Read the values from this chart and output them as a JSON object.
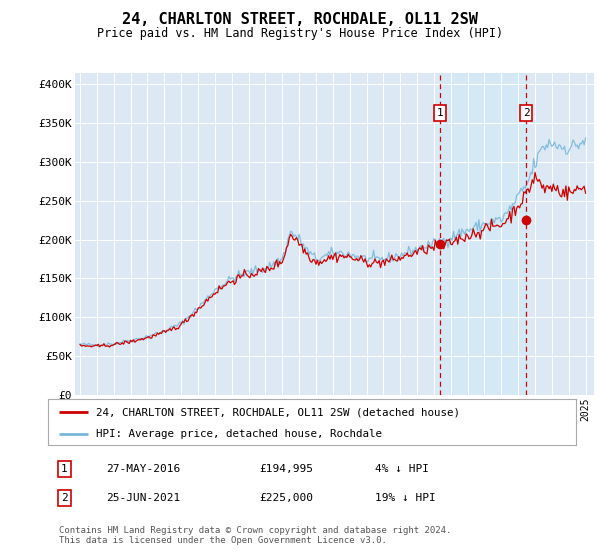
{
  "title": "24, CHARLTON STREET, ROCHDALE, OL11 2SW",
  "subtitle": "Price paid vs. HM Land Registry's House Price Index (HPI)",
  "ylabel_ticks": [
    "£0",
    "£50K",
    "£100K",
    "£150K",
    "£200K",
    "£250K",
    "£300K",
    "£350K",
    "£400K"
  ],
  "ytick_values": [
    0,
    50000,
    100000,
    150000,
    200000,
    250000,
    300000,
    350000,
    400000
  ],
  "ylim": [
    0,
    415000
  ],
  "xlim": [
    1994.7,
    2025.5
  ],
  "legend_line1": "24, CHARLTON STREET, ROCHDALE, OL11 2SW (detached house)",
  "legend_line2": "HPI: Average price, detached house, Rochdale",
  "annotation1_label": "1",
  "annotation1_date": "27-MAY-2016",
  "annotation1_price": "£194,995",
  "annotation1_pct": "4% ↓ HPI",
  "annotation1_year": 2016.38,
  "annotation1_value": 194995,
  "annotation2_label": "2",
  "annotation2_date": "25-JUN-2021",
  "annotation2_price": "£225,000",
  "annotation2_pct": "19% ↓ HPI",
  "annotation2_year": 2021.47,
  "annotation2_value": 225000,
  "hpi_color": "#7ab8d9",
  "price_color": "#cc0000",
  "vline_color": "#cc0000",
  "dot_color": "#cc0000",
  "shade_color": "#d0e8f5",
  "background_color": "#e8f0f8",
  "plot_bg_color": "#dce9f5",
  "footer": "Contains HM Land Registry data © Crown copyright and database right 2024.\nThis data is licensed under the Open Government Licence v3.0."
}
